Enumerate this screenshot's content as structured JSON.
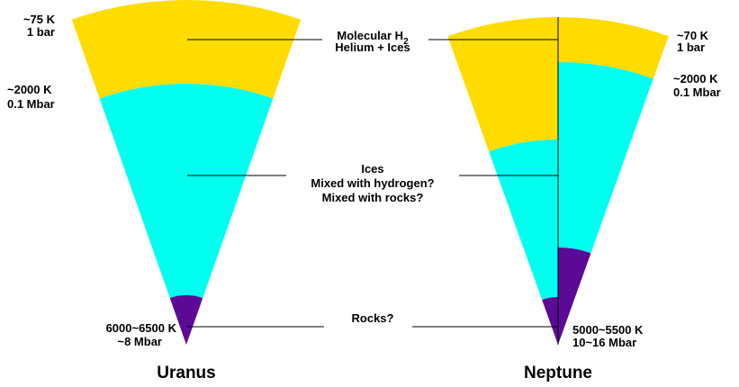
{
  "planets": [
    {
      "name": "Uranus",
      "top": [
        "~75 K",
        "1 bar"
      ],
      "middle": [
        "~2000 K",
        "0.1 Mbar"
      ],
      "core": [
        "6000~6500 K",
        "~8 Mbar"
      ]
    },
    {
      "name": "Neptune",
      "top": [
        "~70 K",
        "1 bar"
      ],
      "middle": [
        "~2000 K",
        "0.1 Mbar"
      ],
      "core": [
        "5000~5500 K",
        "10~16 Mbar"
      ]
    }
  ],
  "layers": {
    "envelope": {
      "line1": "Molecular H",
      "subscript": "2",
      "line2": "Helium + Ices"
    },
    "mantle": [
      "Ices",
      "Mixed with hydrogen?",
      "Mixed with rocks?"
    ],
    "core": "Rocks?"
  }
}
